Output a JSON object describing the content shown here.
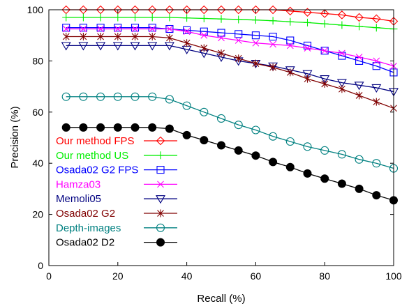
{
  "chart_data": {
    "type": "line",
    "xlabel": "Recall (%)",
    "ylabel": "Precision (%)",
    "xlim": [
      0,
      100
    ],
    "ylim": [
      0,
      100
    ],
    "x_ticks": [
      "0",
      "20",
      "40",
      "60",
      "80",
      "100"
    ],
    "y_ticks": [
      "0",
      "20",
      "40",
      "60",
      "80",
      "100"
    ],
    "grid": false,
    "legend_position": "lower-left",
    "x": [
      5,
      10,
      15,
      20,
      25,
      30,
      35,
      40,
      45,
      50,
      55,
      60,
      65,
      70,
      75,
      80,
      85,
      90,
      95,
      100
    ],
    "series": [
      {
        "name": "Our method FPS",
        "color": "#ff0000",
        "marker": "diamond",
        "values": [
          100,
          100,
          100,
          100,
          100,
          100,
          100,
          100,
          100,
          100,
          100,
          100,
          100,
          99.5,
          99,
          98.5,
          98,
          97,
          96.5,
          95.5
        ]
      },
      {
        "name": "Our method US",
        "color": "#00ee00",
        "marker": "plus",
        "values": [
          97,
          97,
          97,
          97,
          97,
          97,
          97,
          96.8,
          96.6,
          96.4,
          96.2,
          96,
          95.7,
          95.3,
          95,
          94.5,
          94,
          93.5,
          93,
          92.5
        ]
      },
      {
        "name": "Osada02 G2 FPS",
        "color": "#0000ff",
        "marker": "square",
        "values": [
          93,
          93,
          93,
          93,
          93,
          93,
          92.5,
          92,
          91.5,
          91,
          90.5,
          90,
          89.5,
          88,
          86,
          84,
          82,
          80,
          78,
          75.5
        ]
      },
      {
        "name": "Hamza03",
        "color": "#ff00ff",
        "marker": "x",
        "values": [
          92.5,
          92.5,
          92.5,
          92.5,
          92.5,
          92.5,
          92.5,
          91.5,
          90,
          89,
          88,
          87,
          86.5,
          86,
          85,
          84,
          83,
          81.5,
          80,
          78
        ]
      },
      {
        "name": "Memoli05",
        "color": "#000080",
        "marker": "triangle-down",
        "values": [
          86,
          86,
          86,
          86,
          86,
          86,
          86,
          84.5,
          83,
          81.5,
          80,
          79,
          78,
          76.5,
          75,
          73,
          71.5,
          70.5,
          69.5,
          68
        ]
      },
      {
        "name": "Osada02 G2",
        "color": "#800000",
        "marker": "asterisk",
        "values": [
          89.5,
          89.5,
          89.5,
          89.5,
          89.5,
          89.5,
          89,
          87,
          85,
          83,
          81,
          79,
          77.5,
          75.5,
          73,
          71,
          69,
          66.5,
          64,
          61.5
        ]
      },
      {
        "name": "Depth-images",
        "color": "#008080",
        "marker": "circle",
        "values": [
          66,
          66,
          66,
          66,
          66,
          66,
          65,
          62.5,
          60,
          57.5,
          55,
          53,
          50.5,
          48.5,
          46.5,
          45,
          43.5,
          41.5,
          40,
          38
        ]
      },
      {
        "name": "Osada02 D2",
        "color": "#000000",
        "marker": "filled-circle",
        "values": [
          54,
          54,
          54,
          54,
          54,
          54,
          53.5,
          51,
          49,
          47,
          45,
          43,
          40.5,
          38.5,
          36,
          34,
          32,
          30,
          27.5,
          25.5
        ]
      }
    ]
  }
}
